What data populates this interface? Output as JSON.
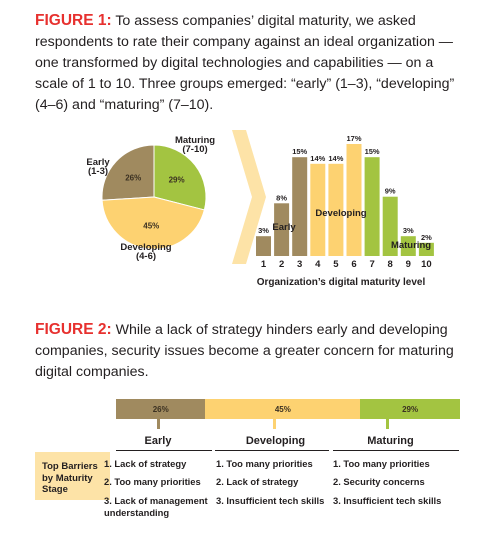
{
  "figure1": {
    "label": "FIGURE 1:",
    "text": "To assess companies’ digital maturity, we asked respondents to rate their company against an ideal organization — one transformed by digital technologies and capabilities — on a scale of 1 to 10. Three groups emerged: “early” (1–3), “developing” (4–6) and “maturing” (7–10)."
  },
  "figure2": {
    "label": "FIGURE 2:",
    "text": "While a lack of strategy hinders early and developing companies, security issues become a greater concern for maturing digital companies."
  },
  "colors": {
    "early": "#a08a5f",
    "developing": "#fdd271",
    "maturing": "#a3c441",
    "accent": "#e7312f"
  },
  "chart_data": [
    {
      "type": "pie",
      "slices": [
        {
          "label_line1": "Early",
          "label_line2": "(1-3)",
          "value": 26,
          "value_label": "26%",
          "color": "#a08a5f"
        },
        {
          "label_line1": "Maturing",
          "label_line2": "(7-10)",
          "value": 29,
          "value_label": "29%",
          "color": "#a3c441"
        },
        {
          "label_line1": "Developing",
          "label_line2": "(4-6)",
          "value": 45,
          "value_label": "45%",
          "color": "#fdd271"
        }
      ]
    },
    {
      "type": "bar",
      "xlabel": "Organization’s digital maturity level",
      "categories": [
        "1",
        "2",
        "3",
        "4",
        "5",
        "6",
        "7",
        "8",
        "9",
        "10"
      ],
      "values": [
        3,
        8,
        15,
        14,
        14,
        17,
        15,
        9,
        3,
        2
      ],
      "value_labels": [
        "3%",
        "8%",
        "15%",
        "14%",
        "14%",
        "17%",
        "15%",
        "9%",
        "3%",
        "2%"
      ],
      "groups": [
        "early",
        "early",
        "early",
        "developing",
        "developing",
        "developing",
        "maturing",
        "maturing",
        "maturing",
        "maturing"
      ],
      "group_labels": {
        "early": "Early",
        "developing": "Developing",
        "maturing": "Maturing"
      },
      "ylim": [
        0,
        17
      ]
    }
  ],
  "stage_bar": {
    "early": "26%",
    "developing": "45%",
    "maturing": "29%"
  },
  "stage_values": {
    "early": 26,
    "developing": 45,
    "maturing": 29
  },
  "barriers_table": {
    "row_header": "Top Barriers by Maturity Stage",
    "columns": [
      {
        "stage": "Early",
        "items": [
          "1. Lack of strategy",
          "2. Too many priorities",
          "3. Lack of management understanding"
        ]
      },
      {
        "stage": "Developing",
        "items": [
          "1. Too many priorities",
          "2. Lack of strategy",
          "3. Insufficient tech skills"
        ]
      },
      {
        "stage": "Maturing",
        "items": [
          "1. Too many priorities",
          "2. Security concerns",
          "3. Insufficient tech skills"
        ]
      }
    ]
  }
}
